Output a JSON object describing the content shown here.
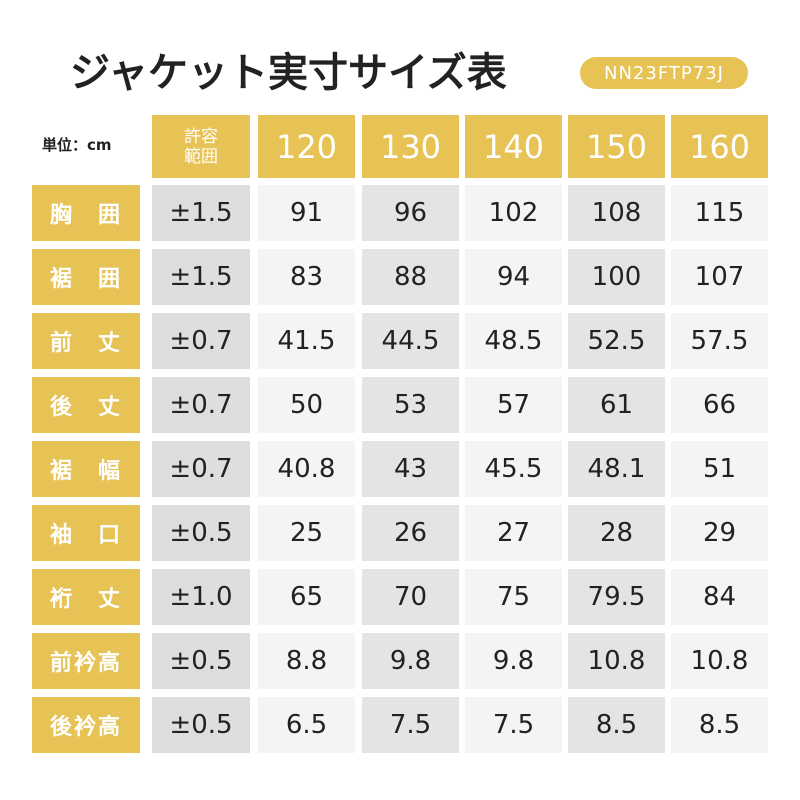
{
  "header": {
    "title": "ジャケット実寸サイズ表",
    "code": "NN23FTP73J"
  },
  "table": {
    "unit": "単位：cm",
    "tolerance_header": [
      "許容",
      "範囲"
    ],
    "sizes": [
      "120",
      "130",
      "140",
      "150",
      "160"
    ],
    "rows": [
      {
        "label": "胸　囲",
        "tolerance": "±1.5",
        "values": [
          "91",
          "96",
          "102",
          "108",
          "115"
        ]
      },
      {
        "label": "裾　囲",
        "tolerance": "±1.5",
        "values": [
          "83",
          "88",
          "94",
          "100",
          "107"
        ]
      },
      {
        "label": "前　丈",
        "tolerance": "±0.7",
        "values": [
          "41.5",
          "44.5",
          "48.5",
          "52.5",
          "57.5"
        ]
      },
      {
        "label": "後　丈",
        "tolerance": "±0.7",
        "values": [
          "50",
          "53",
          "57",
          "61",
          "66"
        ]
      },
      {
        "label": "裾　幅",
        "tolerance": "±0.7",
        "values": [
          "40.8",
          "43",
          "45.5",
          "48.1",
          "51"
        ]
      },
      {
        "label": "袖　口",
        "tolerance": "±0.5",
        "values": [
          "25",
          "26",
          "27",
          "28",
          "29"
        ]
      },
      {
        "label": "裄　丈",
        "tolerance": "±1.0",
        "values": [
          "65",
          "70",
          "75",
          "79.5",
          "84"
        ]
      },
      {
        "label": "前衿高",
        "tolerance": "±0.5",
        "values": [
          "8.8",
          "9.8",
          "9.8",
          "10.8",
          "10.8"
        ]
      },
      {
        "label": "後衿高",
        "tolerance": "±0.5",
        "values": [
          "6.5",
          "7.5",
          "7.5",
          "8.5",
          "8.5"
        ]
      }
    ]
  }
}
